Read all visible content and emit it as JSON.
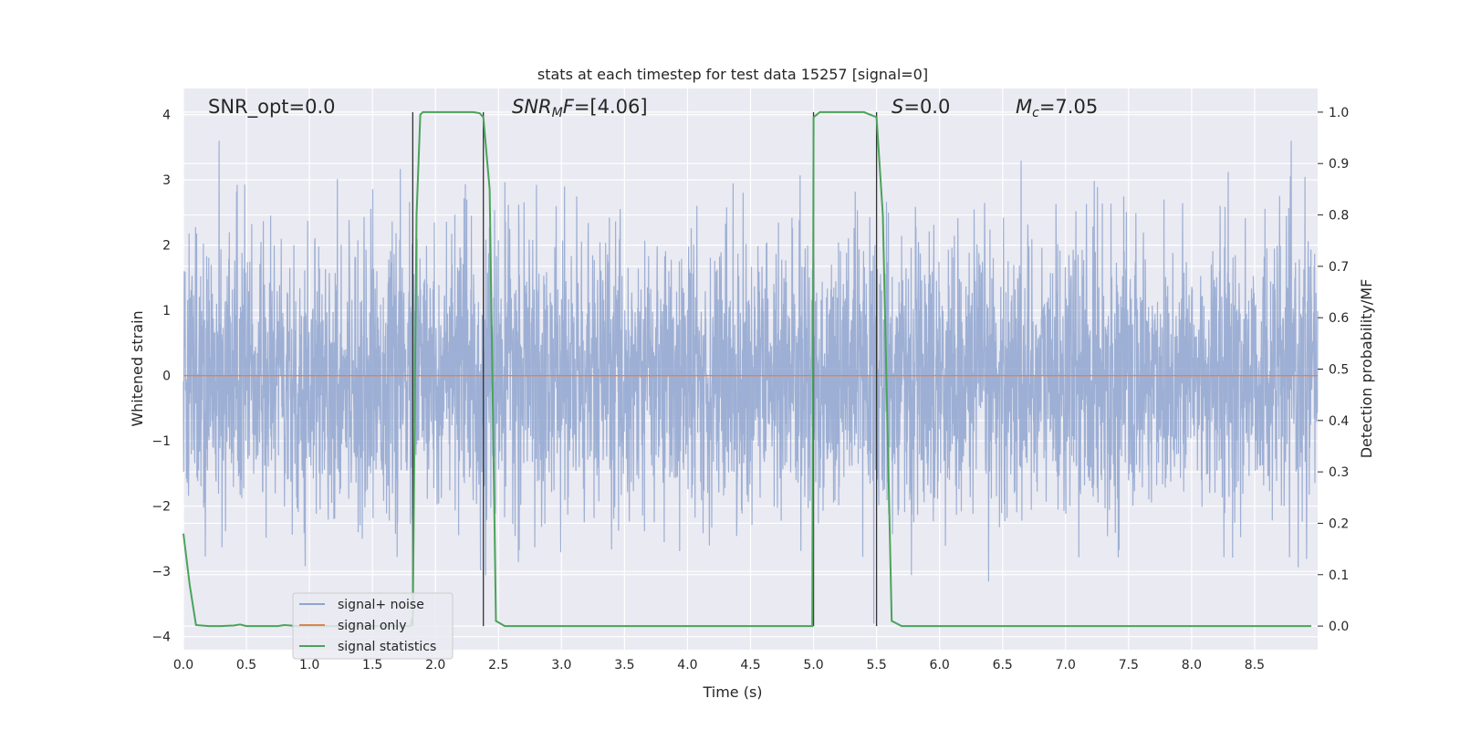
{
  "chart_data": {
    "type": "line",
    "title": "stats at each timestep for test data 15257 [signal=0]",
    "xlabel": "Time (s)",
    "ylabel": "Whitened strain",
    "ylabel_right": "Detection probability/MF",
    "xlim": [
      0.0,
      9.0
    ],
    "ylim": [
      -4.2,
      4.4
    ],
    "ylim_right": [
      -0.046,
      1.046
    ],
    "x_ticks": [
      "0.0",
      "0.5",
      "1.0",
      "1.5",
      "2.0",
      "2.5",
      "3.0",
      "3.5",
      "4.0",
      "4.5",
      "5.0",
      "5.5",
      "6.0",
      "6.5",
      "7.0",
      "7.5",
      "8.0",
      "8.5"
    ],
    "y_ticks": [
      "4",
      "3",
      "2",
      "1",
      "0",
      "−1",
      "−2",
      "−3",
      "−4"
    ],
    "y_ticks_right": [
      "1.0",
      "0.9",
      "0.8",
      "0.7",
      "0.6",
      "0.5",
      "0.4",
      "0.3",
      "0.2",
      "0.1",
      "0.0"
    ],
    "grid": true,
    "legend_position": "lower-left",
    "annotations": [
      {
        "id": "snr-opt",
        "text": "SNR_opt=0.0",
        "x": 0.2
      },
      {
        "id": "snr-mf",
        "text": "=[4.06]",
        "x": 2.6
      },
      {
        "id": "s",
        "text": "=0.0",
        "x": 5.6
      },
      {
        "id": "mc",
        "text": "=7.05",
        "x": 6.6
      }
    ],
    "annotation_symbols": {
      "snr_mf": "SNR",
      "snr_mf_sub": "M",
      "snr_mf_suffix": "F",
      "s": "S",
      "mc": "M",
      "mc_sub": "c"
    },
    "vertical_markers": [
      1.82,
      2.38,
      5.0,
      5.5
    ],
    "series": [
      {
        "name": "signal+ noise",
        "color": "#8fa5cf",
        "kind": "noise",
        "x_range": [
          0.0,
          9.0
        ],
        "y_envelope": [
          -3.8,
          3.6
        ],
        "note_values": "dense whitened strain noise, approximately Gaussian with std 1"
      },
      {
        "name": "signal only",
        "color": "#dd8452",
        "x": [
          0.0,
          9.0
        ],
        "y": [
          0.0,
          0.0
        ]
      },
      {
        "name": "signal statistics",
        "color": "#4aa35a",
        "axis": "right",
        "x": [
          0.0,
          0.05,
          0.1,
          0.2,
          0.3,
          0.4,
          0.45,
          0.5,
          0.6,
          0.7,
          0.75,
          0.8,
          0.85,
          0.9,
          1.0,
          1.1,
          1.2,
          1.3,
          1.4,
          1.5,
          1.6,
          1.7,
          1.8,
          1.82,
          1.85,
          1.88,
          1.9,
          1.95,
          2.0,
          2.1,
          2.2,
          2.3,
          2.35,
          2.38,
          2.43,
          2.48,
          2.55,
          2.6,
          3.0,
          4.0,
          4.5,
          4.99,
          5.0,
          5.05,
          5.1,
          5.2,
          5.3,
          5.4,
          5.5,
          5.55,
          5.62,
          5.7,
          6.0,
          7.0,
          8.0,
          8.95
        ],
        "y": [
          0.18,
          0.08,
          0.002,
          0.0,
          0.0,
          0.001,
          0.003,
          0.0,
          0.0,
          0.0,
          0.0,
          0.002,
          0.001,
          0.0,
          0.0,
          0.0,
          0.0,
          0.0,
          0.0,
          0.0,
          0.0,
          0.0,
          0.0,
          0.02,
          0.8,
          0.995,
          1.0,
          1.0,
          1.0,
          1.0,
          1.0,
          1.0,
          0.998,
          0.99,
          0.85,
          0.01,
          0.0,
          0.0,
          0.0,
          0.0,
          0.0,
          0.0,
          0.99,
          1.0,
          1.0,
          1.0,
          1.0,
          1.0,
          0.99,
          0.8,
          0.01,
          0.0,
          0.0,
          0.0,
          0.0,
          0.0
        ]
      }
    ],
    "legend": [
      {
        "label": "signal+ noise",
        "color": "#8fa5cf"
      },
      {
        "label": "signal only",
        "color": "#dd8452"
      },
      {
        "label": "signal statistics",
        "color": "#4aa35a"
      }
    ]
  }
}
